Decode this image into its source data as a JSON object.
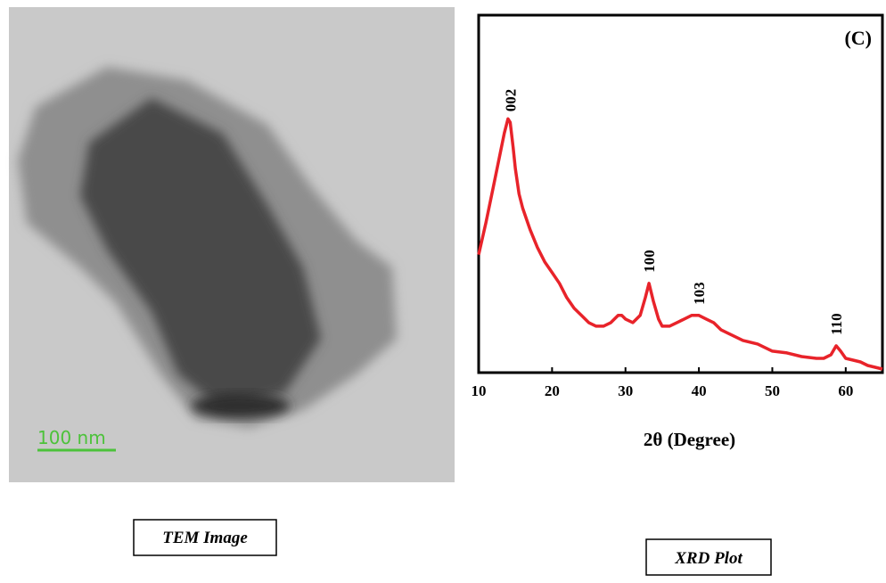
{
  "tem": {
    "scale_label": "100 nm",
    "caption": "TEM Image"
  },
  "xrd_caption": "XRD Plot",
  "chart_data": {
    "type": "line",
    "panel_label": "(C)",
    "xlabel": "2θ (Degree)",
    "xlim": [
      10,
      65
    ],
    "xticks": [
      10,
      20,
      30,
      40,
      50,
      60
    ],
    "ylim": [
      0,
      100
    ],
    "series": [
      {
        "color": "#e8232a",
        "x": [
          10,
          11,
          12,
          13,
          13.5,
          14,
          14.3,
          14.7,
          15,
          15.5,
          16,
          17,
          18,
          19,
          20,
          21,
          22,
          23,
          24,
          25,
          26,
          27,
          28,
          29,
          29.5,
          30,
          31,
          32,
          32.7,
          33.2,
          33.8,
          34.5,
          35,
          36,
          37,
          38,
          39,
          40,
          41,
          42,
          43,
          44,
          46,
          48,
          50,
          52,
          54,
          56,
          57,
          58,
          58.7,
          59.3,
          60,
          61,
          62,
          63,
          64,
          65
        ],
        "values": [
          33,
          42,
          52,
          62,
          67,
          71,
          70,
          63,
          57,
          50,
          46,
          40,
          35,
          31,
          28,
          25,
          21,
          18,
          16,
          14,
          13,
          13,
          14,
          16,
          16,
          15,
          14,
          16,
          21,
          25,
          20,
          15,
          13,
          13,
          14,
          15,
          16,
          16,
          15,
          14,
          12,
          11,
          9,
          8,
          6,
          5.5,
          4.5,
          4,
          4,
          5,
          7.5,
          6,
          4,
          3.5,
          3,
          2,
          1.5,
          1
        ]
      }
    ],
    "annotations": [
      {
        "text": "002",
        "x": 14.3
      },
      {
        "text": "100",
        "x": 33.2
      },
      {
        "text": "103",
        "x": 40
      },
      {
        "text": "110",
        "x": 58.7
      }
    ]
  }
}
